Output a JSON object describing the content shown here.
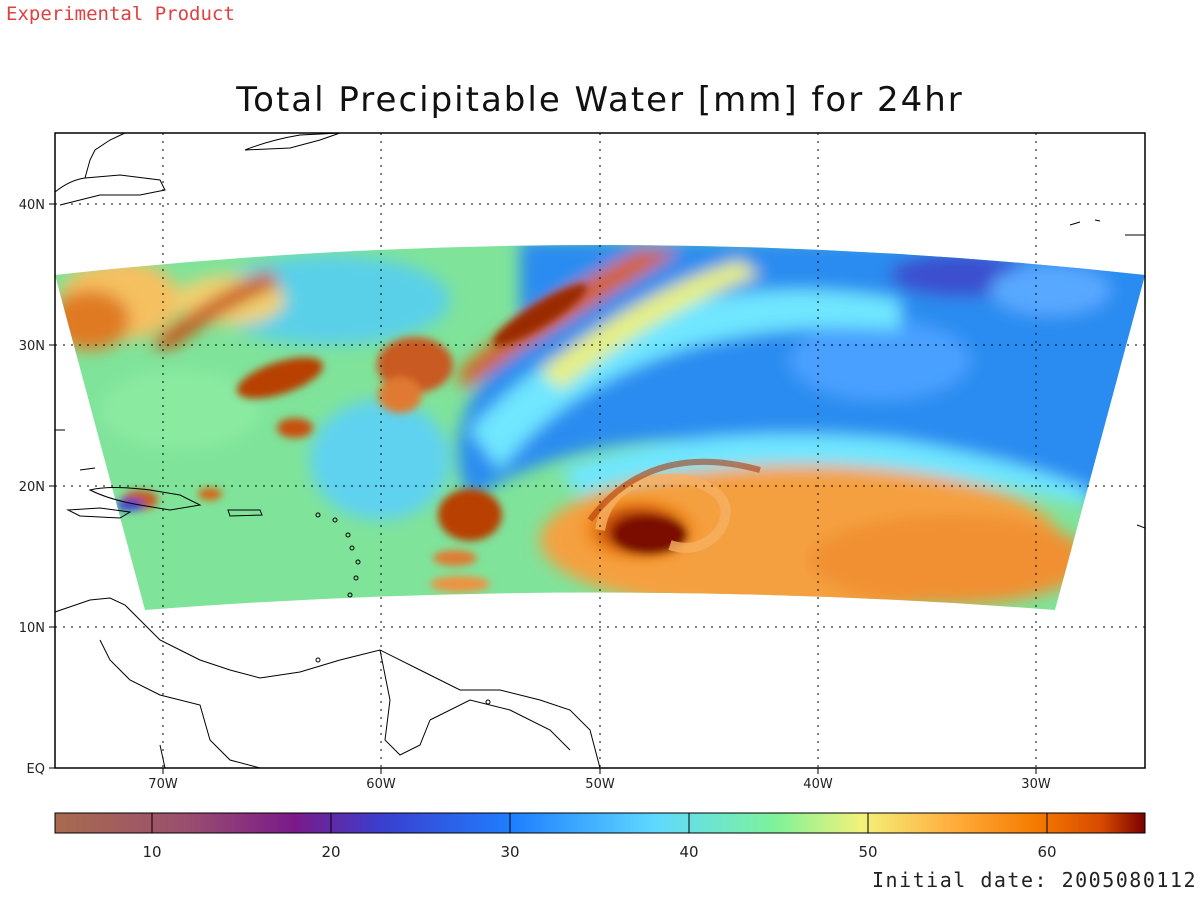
{
  "header": {
    "experimental_label": "Experimental Product"
  },
  "map": {
    "title": "Total Precipitable Water [mm] for 24hr",
    "lat_labels": [
      "40N",
      "30N",
      "20N",
      "10N",
      "EQ"
    ],
    "lon_labels": [
      "70W",
      "60W",
      "50W",
      "40W",
      "30W"
    ],
    "extent": {
      "lon_min": -75,
      "lon_max": -25,
      "lat_min": 0,
      "lat_max": 45
    },
    "features": {
      "storm_center": {
        "lon": -47,
        "lat": 17,
        "tpw_mm": 65
      },
      "plume_max_mm": 60,
      "dry_min_mm": 20
    }
  },
  "colorbar": {
    "min": 5,
    "max": 66,
    "tick_labels": [
      "10",
      "20",
      "30",
      "40",
      "50",
      "60"
    ],
    "colors": [
      "#a86b4e",
      "#9a4f6e",
      "#7a1a8a",
      "#3a3fcf",
      "#1f7fff",
      "#5ed8ff",
      "#7ef29a",
      "#f2f27a",
      "#ffb040",
      "#f57a00",
      "#d84a00",
      "#7a0000"
    ]
  },
  "footer": {
    "initial_date": "Initial date: 2005080112"
  }
}
